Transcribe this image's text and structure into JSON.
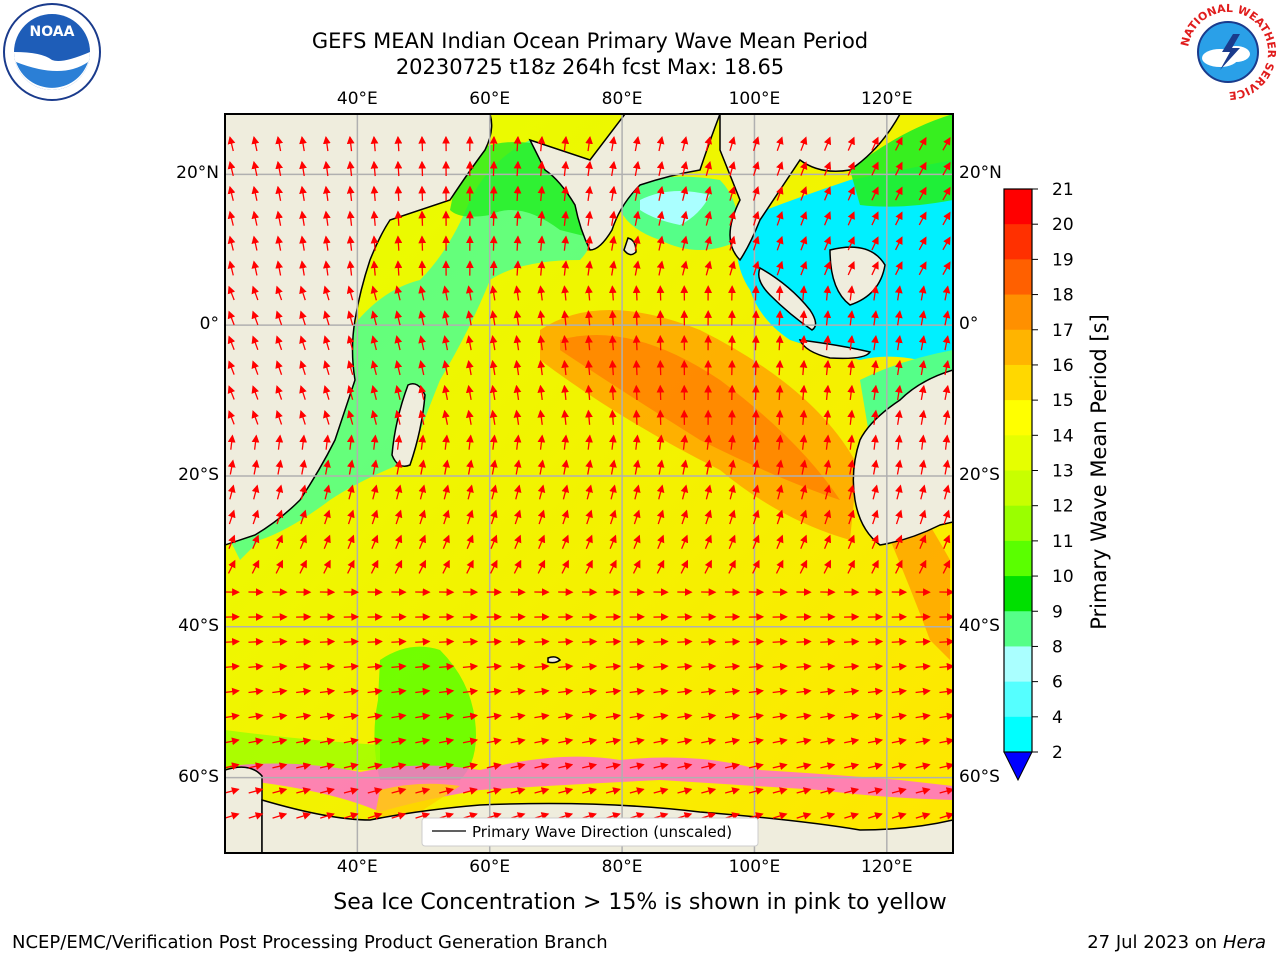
{
  "header": {
    "title_line1": "GEFS MEAN Indian Ocean Primary Wave Mean Period",
    "title_line2": "20230725 t18z 264h fcst   Max: 18.65"
  },
  "logos": {
    "noaa_text": "NOAA",
    "nws_ring_text": "NATIONAL WEATHER SERVICE"
  },
  "map": {
    "lon_ticks": [
      "40°E",
      "60°E",
      "80°E",
      "100°E",
      "120°E"
    ],
    "lat_ticks": [
      "20°N",
      "0°",
      "20°S",
      "40°S",
      "60°S"
    ],
    "lon_range": [
      20,
      130
    ],
    "lat_range": [
      -70,
      28
    ],
    "legend_label": "Primary Wave Direction (unscaled)",
    "arrow_color": "#ff0000",
    "land_color": "#efeddd",
    "ocean_note": "Sea Ice Concentration > 15% is shown in pink to yellow"
  },
  "colorbar": {
    "title": "Primary Wave Mean Period [s]",
    "levels": [
      "21",
      "20",
      "19",
      "18",
      "17",
      "16",
      "15",
      "14",
      "13",
      "12",
      "11",
      "10",
      "9",
      "8",
      "6",
      "4",
      "2"
    ],
    "colors": [
      "#ff0000",
      "#ff3000",
      "#ff6000",
      "#ff9000",
      "#ffb400",
      "#ffd800",
      "#ffff00",
      "#e6ff00",
      "#c8ff00",
      "#9aff00",
      "#5aff00",
      "#00e000",
      "#55ff88",
      "#aaffff",
      "#55ffff",
      "#00ffff",
      "#00c8ff",
      "#0077ff"
    ],
    "under_color": "#0000ff"
  },
  "footer": {
    "left": "NCEP/EMC/Verification Post Processing Product Generation Branch",
    "date": "27 Jul 2023 on ",
    "machine": "Hera"
  }
}
